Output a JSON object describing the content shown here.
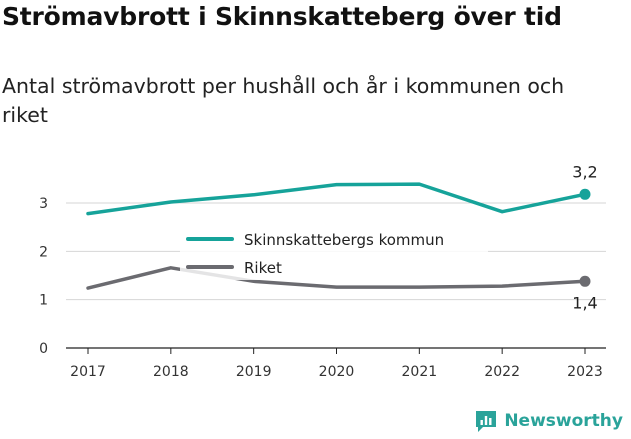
{
  "header": {
    "title": "Strömavbrott i Skinnskatteberg över tid",
    "subtitle": "Antal strömavbrott per hushåll och år i kommunen och riket"
  },
  "brand": {
    "name": "Newsworthy",
    "icon": "newsworthy-logo-icon",
    "color": "#2aa39a"
  },
  "chart_data": {
    "type": "line",
    "title": "Strömavbrott i Skinnskatteberg över tid",
    "subtitle": "Antal strömavbrott per hushåll och år i kommunen och riket",
    "xlabel": "",
    "ylabel": "",
    "x": [
      "2017",
      "2018",
      "2019",
      "2020",
      "2021",
      "2022",
      "2023"
    ],
    "ylim": [
      0,
      3.6
    ],
    "yticks": [
      0,
      1,
      2,
      3
    ],
    "ytick_labels": [
      "0",
      "1",
      "2",
      "3"
    ],
    "grid": true,
    "legend_position": "center",
    "series": [
      {
        "name": "Skinnskattebergs kommun",
        "color": "#16a39a",
        "values": [
          2.78,
          3.02,
          3.17,
          3.38,
          3.39,
          2.82,
          3.18
        ],
        "end_label": "3,2"
      },
      {
        "name": "Riket",
        "color": "#6b6b70",
        "values": [
          1.24,
          1.66,
          1.38,
          1.26,
          1.26,
          1.28,
          1.38
        ],
        "end_label": "1,4"
      }
    ]
  }
}
